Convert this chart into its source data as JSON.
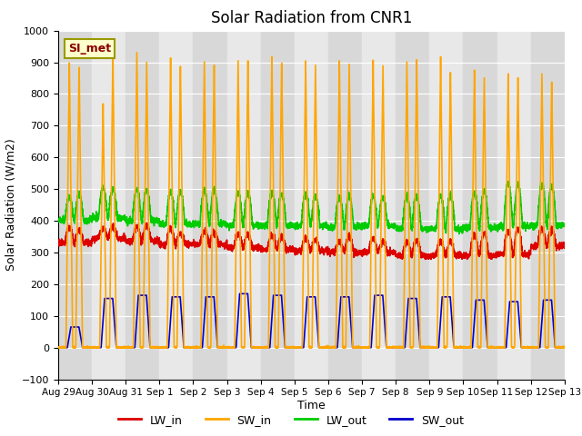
{
  "title": "Solar Radiation from CNR1",
  "xlabel": "Time",
  "ylabel": "Solar Radiation (W/m2)",
  "ylim": [
    -100,
    1000
  ],
  "background_color": "#e0e0e0",
  "legend_label": "SI_met",
  "series": {
    "LW_in": {
      "color": "#dd0000",
      "linewidth": 1.2
    },
    "SW_in": {
      "color": "#ffa500",
      "linewidth": 1.2
    },
    "LW_out": {
      "color": "#00cc00",
      "linewidth": 1.2
    },
    "SW_out": {
      "color": "#0000cc",
      "linewidth": 1.2
    }
  },
  "n_days": 15,
  "tick_labels": [
    "Aug 29",
    "Aug 30",
    "Aug 31",
    "Sep 1",
    "Sep 2",
    "Sep 3",
    "Sep 4",
    "Sep 5",
    "Sep 6",
    "Sep 7",
    "Sep 8",
    "Sep 9",
    "Sep 10",
    "Sep 11",
    "Sep 12",
    "Sep 13"
  ],
  "yticks": [
    -100,
    0,
    100,
    200,
    300,
    400,
    500,
    600,
    700,
    800,
    900,
    1000
  ],
  "SW_in_peak1": [
    900,
    770,
    930,
    915,
    900,
    905,
    920,
    910,
    905,
    910,
    900,
    920,
    880,
    865,
    865
  ],
  "SW_in_peak2": [
    900,
    930,
    915,
    900,
    905,
    920,
    910,
    905,
    910,
    900,
    920,
    880,
    865,
    865,
    850
  ],
  "SW_out_peaks": [
    65,
    155,
    165,
    160,
    160,
    170,
    165,
    160,
    160,
    165,
    155,
    160,
    150,
    145,
    150
  ],
  "LW_in_base": [
    330,
    345,
    335,
    325,
    325,
    315,
    310,
    305,
    300,
    300,
    290,
    290,
    290,
    295,
    320
  ],
  "LW_in_peak1": [
    380,
    375,
    380,
    375,
    365,
    360,
    355,
    345,
    335,
    345,
    330,
    335,
    355,
    370,
    375
  ],
  "LW_in_peak2": [
    370,
    380,
    385,
    360,
    360,
    355,
    350,
    340,
    350,
    335,
    340,
    335,
    360,
    375,
    370
  ],
  "LW_out_base": [
    400,
    410,
    400,
    390,
    390,
    385,
    385,
    385,
    380,
    385,
    375,
    375,
    378,
    382,
    385
  ],
  "LW_out_peak1": [
    475,
    505,
    500,
    490,
    495,
    490,
    488,
    485,
    475,
    478,
    480,
    478,
    490,
    520,
    515
  ],
  "LW_out_peak2": [
    480,
    500,
    495,
    492,
    498,
    488,
    485,
    480,
    478,
    475,
    478,
    482,
    492,
    515,
    510
  ]
}
